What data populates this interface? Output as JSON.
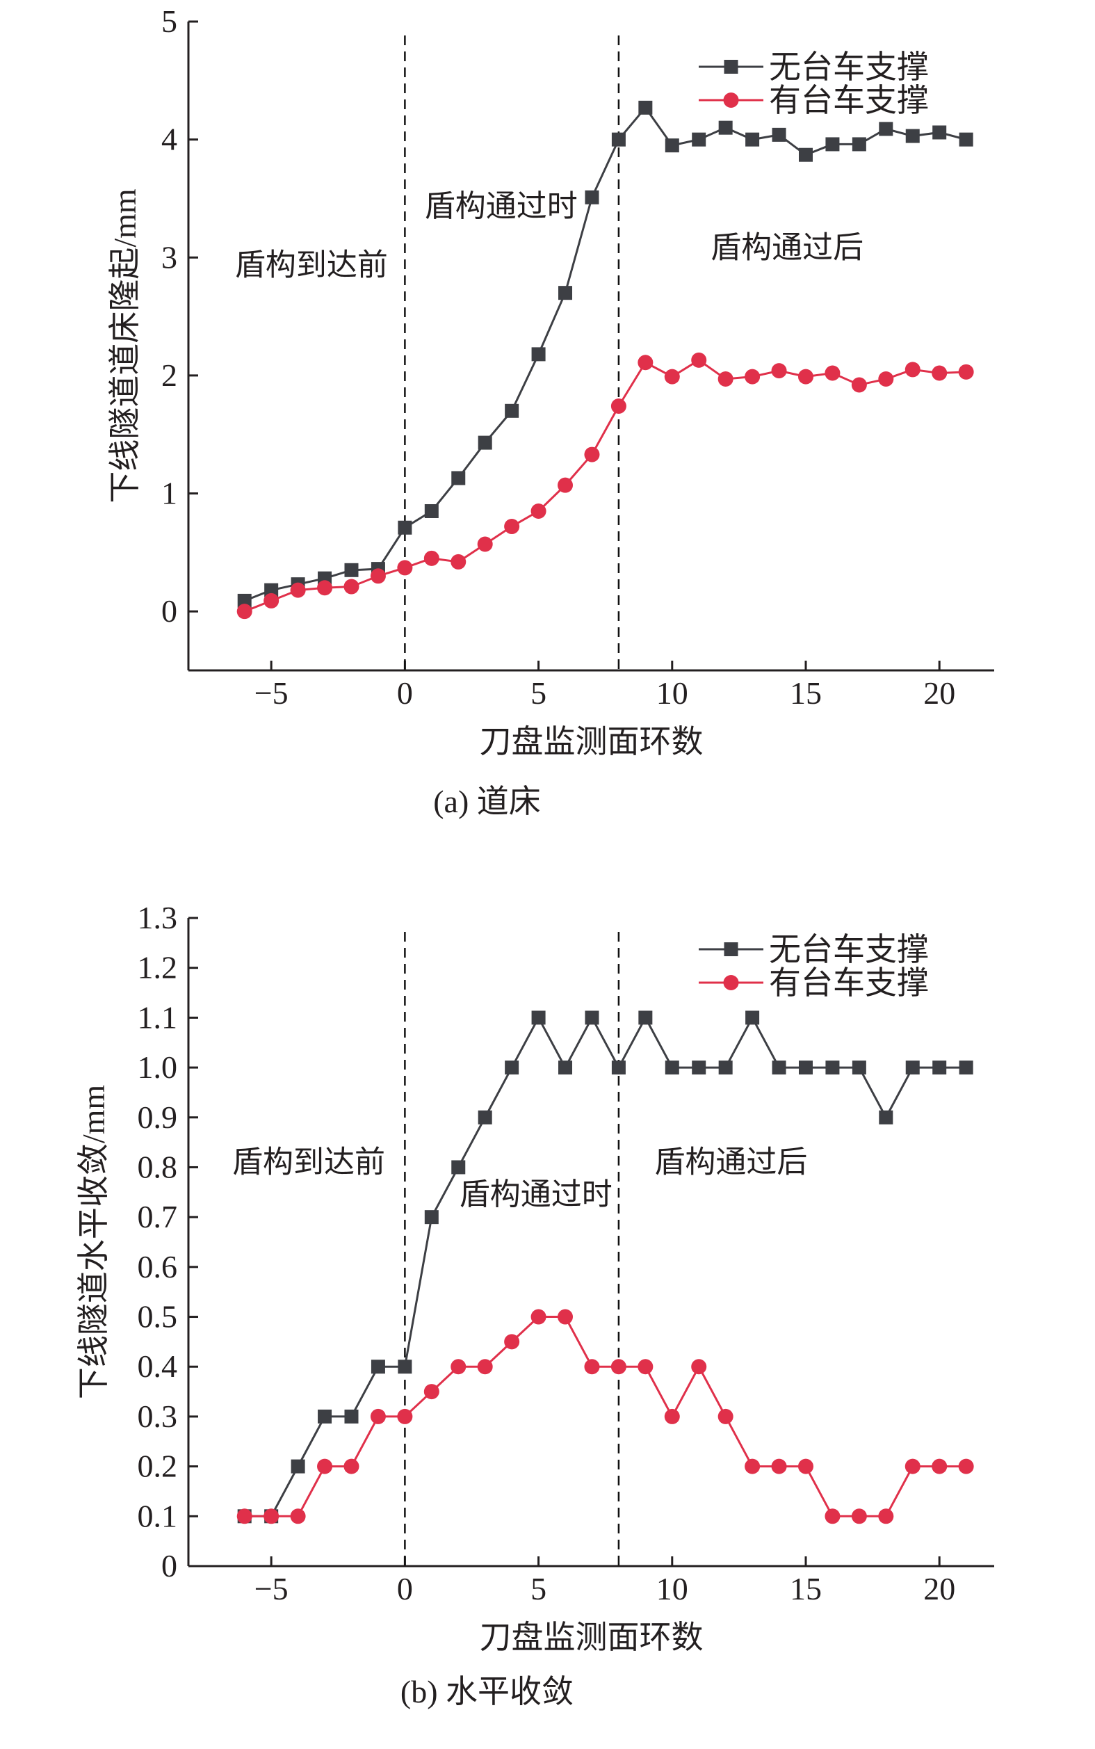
{
  "colors": {
    "no_support": "#3d3f44",
    "with_support": "#e0304a",
    "axis": "#231f20"
  },
  "chart_data": [
    {
      "type": "line",
      "caption": "(a) 道床",
      "xlabel": "刀盘监测面环数",
      "ylabel": "下线隧道道床隆起/mm",
      "xlim": [
        -8.1,
        22.05
      ],
      "ylim": [
        -0.5,
        5
      ],
      "xticks": [
        -5,
        0,
        5,
        10,
        15,
        20
      ],
      "xtick_labels": [
        "−5",
        "0",
        "5",
        "10",
        "15",
        "20"
      ],
      "yticks": [
        0,
        1,
        2,
        3,
        4,
        5
      ],
      "ytick_labels": [
        "0",
        "1",
        "2",
        "3",
        "4",
        "5"
      ],
      "vlines": [
        0,
        8
      ],
      "annotations": [
        {
          "text": "盾构到达前",
          "x": -3.5,
          "y": 2.85
        },
        {
          "text": "盾构通过时",
          "x": 3.6,
          "y": 3.35
        },
        {
          "text": "盾构通过后",
          "x": 14.3,
          "y": 3.0
        }
      ],
      "legend_position": "top-right",
      "x": [
        -6,
        -5,
        -4,
        -3,
        -2,
        -1,
        0,
        1,
        2,
        3,
        4,
        5,
        6,
        7,
        8,
        9,
        10,
        11,
        12,
        13,
        14,
        15,
        16,
        17,
        18,
        19,
        20,
        21
      ],
      "series": [
        {
          "name": "无台车支撑",
          "marker": "square",
          "values": [
            0.09,
            0.18,
            0.23,
            0.28,
            0.35,
            0.36,
            0.71,
            0.85,
            1.13,
            1.43,
            1.7,
            2.18,
            2.7,
            3.51,
            4.0,
            4.27,
            3.95,
            4.0,
            4.1,
            4.0,
            4.04,
            3.87,
            3.96,
            3.96,
            4.09,
            4.03,
            4.06,
            4.0
          ]
        },
        {
          "name": "有台车支撑",
          "marker": "circle",
          "values": [
            0.0,
            0.09,
            0.18,
            0.2,
            0.21,
            0.3,
            0.37,
            0.45,
            0.42,
            0.57,
            0.72,
            0.85,
            1.07,
            1.33,
            1.74,
            2.11,
            1.99,
            2.13,
            1.97,
            1.99,
            2.04,
            1.99,
            2.02,
            1.92,
            1.97,
            2.05,
            2.02,
            2.03
          ]
        }
      ]
    },
    {
      "type": "line",
      "caption": "(b) 水平收敛",
      "xlabel": "刀盘监测面环数",
      "ylabel": "下线隧道水平收敛/mm",
      "xlim": [
        -8.1,
        22.05
      ],
      "ylim": [
        0,
        1.3
      ],
      "xticks": [
        -5,
        0,
        5,
        10,
        15,
        20
      ],
      "xtick_labels": [
        "−5",
        "0",
        "5",
        "10",
        "15",
        "20"
      ],
      "yticks": [
        0,
        0.1,
        0.2,
        0.3,
        0.4,
        0.5,
        0.6,
        0.7,
        0.8,
        0.9,
        1.0,
        1.1,
        1.2,
        1.3
      ],
      "ytick_labels": [
        "0",
        "0.1",
        "0.2",
        "0.3",
        "0.4",
        "0.5",
        "0.6",
        "0.7",
        "0.8",
        "0.9",
        "1.0",
        "1.1",
        "1.2",
        "1.3"
      ],
      "vlines": [
        0,
        8
      ],
      "annotations": [
        {
          "text": "盾构到达前",
          "x": -3.6,
          "y": 0.79
        },
        {
          "text": "盾构通过时",
          "x": 4.9,
          "y": 0.725
        },
        {
          "text": "盾构通过后",
          "x": 12.2,
          "y": 0.79
        }
      ],
      "legend_position": "top-right",
      "x": [
        -6,
        -5,
        -4,
        -3,
        -2,
        -1,
        0,
        1,
        2,
        3,
        4,
        5,
        6,
        7,
        8,
        9,
        10,
        11,
        12,
        13,
        14,
        15,
        16,
        17,
        18,
        19,
        20,
        21
      ],
      "series": [
        {
          "name": "无台车支撑",
          "marker": "square",
          "values": [
            0.1,
            0.1,
            0.2,
            0.3,
            0.3,
            0.4,
            0.4,
            0.7,
            0.8,
            0.9,
            1.0,
            1.1,
            1.0,
            1.1,
            1.0,
            1.1,
            1.0,
            1.0,
            1.0,
            1.1,
            1.0,
            1.0,
            1.0,
            1.0,
            0.9,
            1.0,
            1.0,
            1.0
          ]
        },
        {
          "name": "有台车支撑",
          "marker": "circle",
          "values": [
            0.1,
            0.1,
            0.1,
            0.2,
            0.2,
            0.3,
            0.3,
            0.35,
            0.4,
            0.4,
            0.45,
            0.5,
            0.5,
            0.4,
            0.4,
            0.4,
            0.3,
            0.4,
            0.3,
            0.2,
            0.2,
            0.2,
            0.1,
            0.1,
            0.1,
            0.2,
            0.2,
            0.2
          ]
        }
      ]
    }
  ]
}
